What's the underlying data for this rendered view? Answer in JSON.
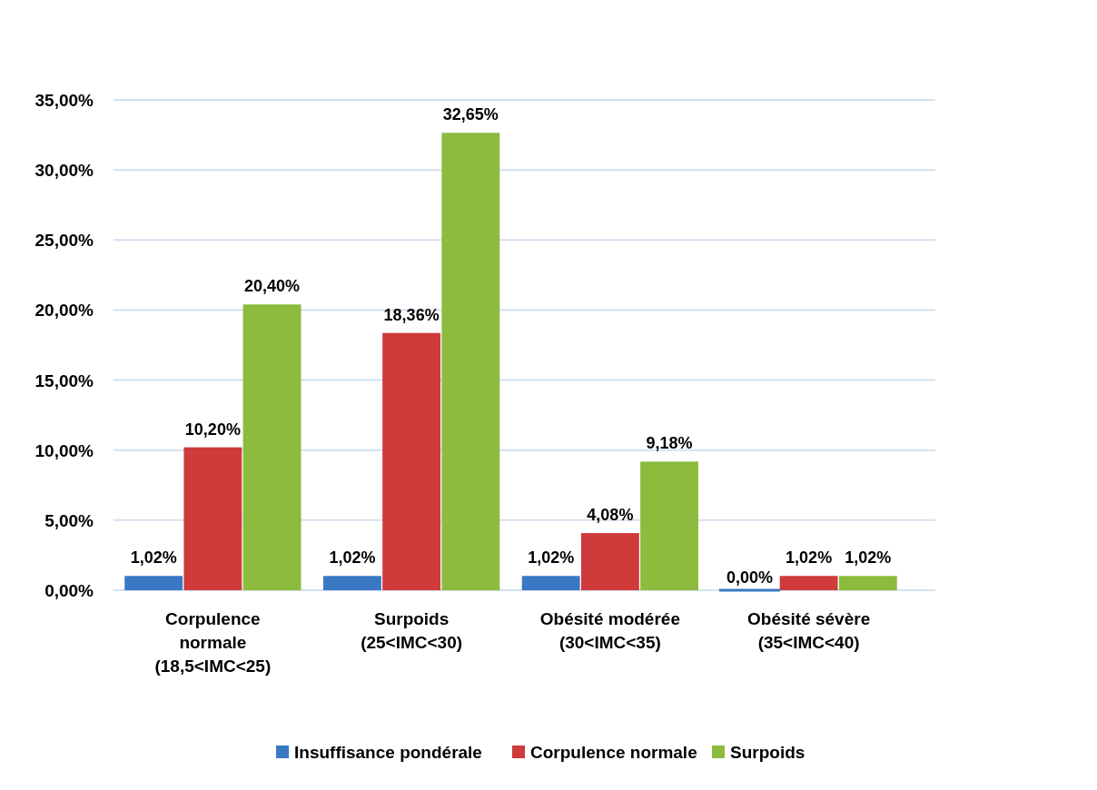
{
  "chart_data": {
    "type": "bar",
    "categories": [
      "Corpulence normale (18,5<IMC<25)",
      "Surpoids (25<IMC<30)",
      "Obésité modérée (30<IMC<35)",
      "Obésité sévère (35<IMC<40)"
    ],
    "series": [
      {
        "name": "Insuffisance pondérale",
        "color": "#3b78c4",
        "values": [
          1.02,
          1.02,
          1.02,
          0
        ],
        "value_labels": [
          "1,02%",
          "1,02%",
          "1,02%",
          "0,00%"
        ]
      },
      {
        "name": "Corpulence normale",
        "color": "#cf3a3a",
        "values": [
          10.2,
          18.36,
          4.08,
          1.02
        ],
        "value_labels": [
          "10,20%",
          "18,36%",
          "4,08%",
          "1,02%"
        ]
      },
      {
        "name": "Surpoids",
        "color": "#8cbb3e",
        "values": [
          20.4,
          32.65,
          9.18,
          1.02
        ],
        "value_labels": [
          "20,40%",
          "32,65%",
          "9,18%",
          "1,02%"
        ]
      }
    ],
    "ylim": [
      0,
      35
    ],
    "yticks": [
      {
        "value": 0,
        "label": "0,00%"
      },
      {
        "value": 5,
        "label": "5,00%"
      },
      {
        "value": 10,
        "label": "10,00%"
      },
      {
        "value": 15,
        "label": "15,00%"
      },
      {
        "value": 20,
        "label": "20,00%"
      },
      {
        "value": 25,
        "label": "25,00%"
      },
      {
        "value": 30,
        "label": "30,00%"
      },
      {
        "value": 35,
        "label": "35,00%"
      }
    ],
    "grid": "y",
    "legend": "bottom"
  }
}
